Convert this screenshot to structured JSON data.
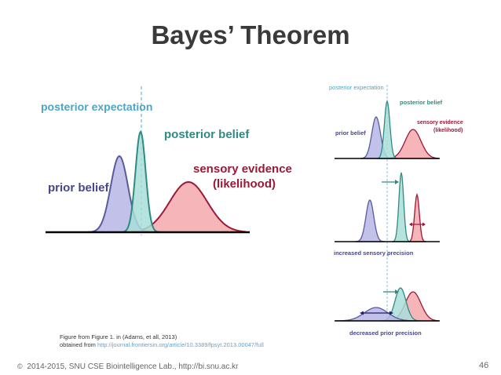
{
  "title": "Bayes’ Theorem",
  "colors": {
    "prior_stroke": "#5a5a9c",
    "prior_fill": "#b7b6e6",
    "posterior_stroke": "#2e8b84",
    "posterior_fill": "#a9ded8",
    "sensory_stroke": "#9c1837",
    "sensory_fill": "#f3a8ad",
    "expectation_line": "#88c2de",
    "axis": "#000000"
  },
  "main_figure": {
    "posterior_expectation": "posterior expectation",
    "posterior_belief": "posterior belief",
    "prior_belief": "prior belief",
    "sensory_evidence_line1": "sensory evidence",
    "sensory_evidence_line2": "(likelihood)"
  },
  "side_figure": {
    "posterior_expectation": "posterior expectation",
    "posterior_belief": "posterior belief",
    "prior_belief": "prior belief",
    "sensory_evidence_line1": "sensory evidence",
    "sensory_evidence_line2": "(likelihood)",
    "increased_sensory_precision": "increased sensory precision",
    "decreased_prior_precision": "decreased prior precision"
  },
  "caption": {
    "line1": "Figure from Figure 1. in (Adams, et all, 2013)",
    "line2_prefix": "obtained from ",
    "line2_link": "http://journal.frontiersin.org/article/10.3389/fpsyt.2013.00047/full"
  },
  "footer": {
    "copyright_symbol": "©",
    "text": "2014-2015, SNU CSE Biointelligence Lab., http://bi.snu.ac.kr"
  },
  "page_number": "46"
}
